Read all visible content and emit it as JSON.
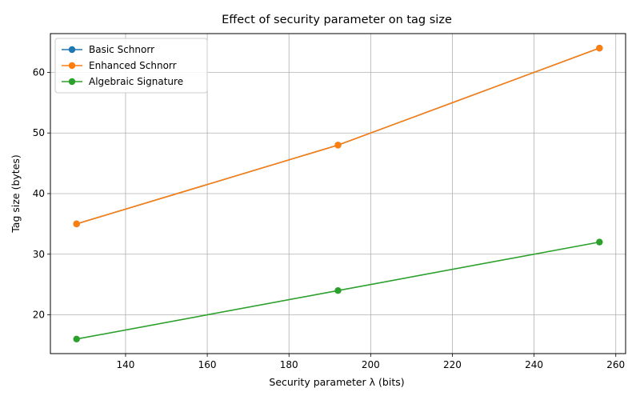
{
  "chart_data": {
    "type": "line",
    "title": "Effect of security parameter on tag size",
    "xlabel": "Security parameter λ (bits)",
    "ylabel": "Tag size (bytes)",
    "x": [
      128,
      192,
      256
    ],
    "series": [
      {
        "name": "Basic Schnorr",
        "values": [
          35,
          48,
          64
        ],
        "color": "#1f77b4"
      },
      {
        "name": "Enhanced Schnorr",
        "values": [
          35,
          48,
          64
        ],
        "color": "#ff7f0e"
      },
      {
        "name": "Algebraic Signature",
        "values": [
          16,
          24,
          32
        ],
        "color": "#2ca02c"
      }
    ],
    "xlim": [
      121.6,
      262.4
    ],
    "ylim": [
      13.6,
      66.4
    ],
    "xticks": [
      140,
      160,
      180,
      200,
      220,
      240,
      260
    ],
    "yticks": [
      20,
      30,
      40,
      50,
      60
    ],
    "grid": true,
    "legend": "upper-left",
    "marker": "circle"
  }
}
